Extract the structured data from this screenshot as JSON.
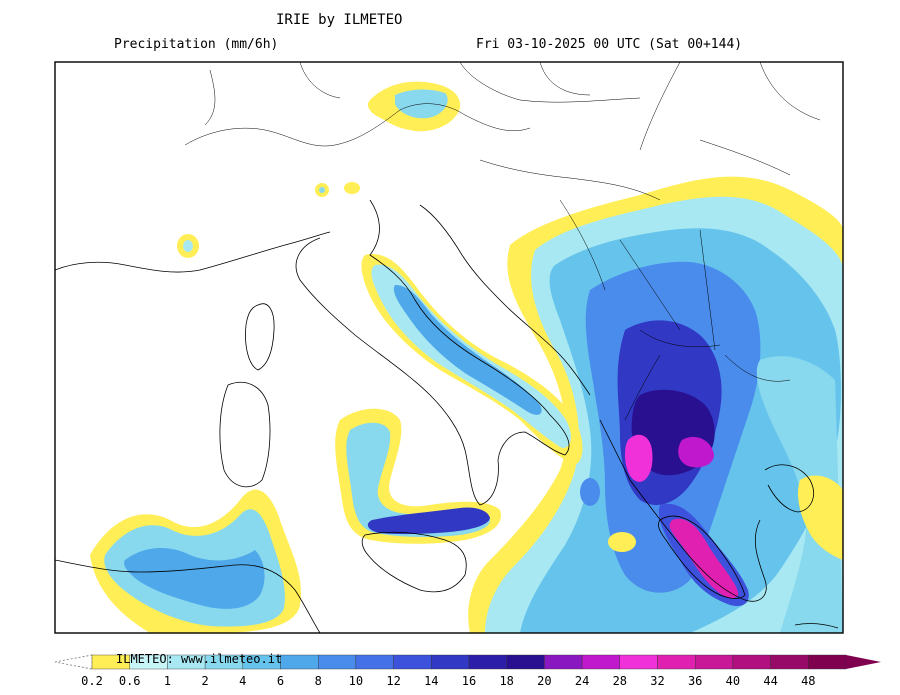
{
  "header": {
    "title": "IRIE by ILMETEO",
    "subtitle": "Precipitation (mm/6h)",
    "valid_time": "Fri 03-10-2025 00 UTC (Sat 00+144)"
  },
  "legend": {
    "credit": "ILMETEO: www.ilmeteo.it",
    "ticks": [
      "0.2",
      "0.6",
      "1",
      "2",
      "4",
      "6",
      "8",
      "10",
      "12",
      "14",
      "16",
      "18",
      "20",
      "24",
      "28",
      "32",
      "36",
      "40",
      "44",
      "48"
    ],
    "colors": [
      "#ffee55",
      "#c8f5f8",
      "#a8e8f2",
      "#88d8ee",
      "#66c4ec",
      "#4ea8ea",
      "#4a8cec",
      "#4470e8",
      "#3c52dc",
      "#3038c4",
      "#2c1ea8",
      "#281090",
      "#8a18c0",
      "#c018cc",
      "#f030d8",
      "#e020b0",
      "#c81898",
      "#b01080",
      "#980a68",
      "#800050"
    ]
  },
  "map": {
    "region": "Italy, Balkans, Greece",
    "max_precip_area": "western Greece / Peloponnese"
  }
}
